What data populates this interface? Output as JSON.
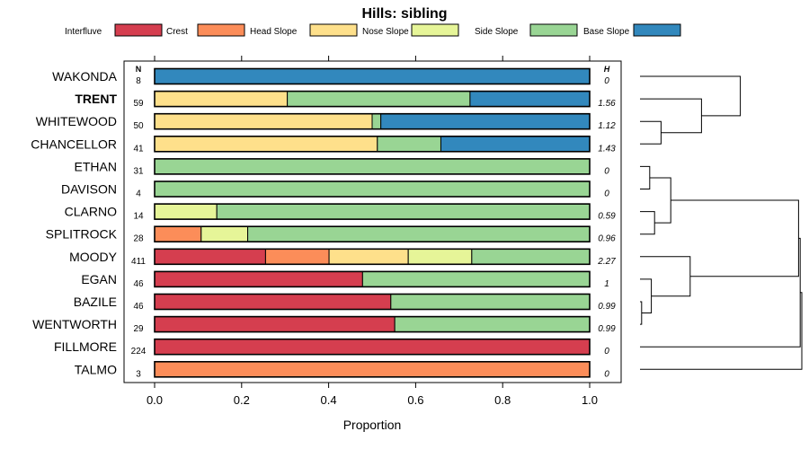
{
  "chart_data": {
    "type": "bar",
    "orientation": "horizontal",
    "stacked": true,
    "title": "Hills: sibling",
    "xlabel": "Proportion",
    "ylabel": "",
    "xlim": [
      0,
      1
    ],
    "x_ticks": [
      0,
      0.2,
      0.4,
      0.6,
      0.8,
      1
    ],
    "x_tick_labels": [
      "0.0",
      "0.2",
      "0.4",
      "0.6",
      "0.8",
      "1.0"
    ],
    "n_header": "N",
    "h_header": "H",
    "legend_position": "top",
    "series": [
      {
        "name": "Interfluve",
        "color": "#d53e4f"
      },
      {
        "name": "Crest",
        "color": "#fc8d59"
      },
      {
        "name": "Head Slope",
        "color": "#fee08b"
      },
      {
        "name": "Nose Slope",
        "color": "#e6f598"
      },
      {
        "name": "Side Slope",
        "color": "#99d594"
      },
      {
        "name": "Base Slope",
        "color": "#3288bd"
      }
    ],
    "rows": [
      {
        "name": "WAKONDA",
        "bold": false,
        "n": "8",
        "h": "0",
        "values": [
          0,
          0,
          0,
          0,
          0,
          1.0
        ]
      },
      {
        "name": "TRENT",
        "bold": true,
        "n": "59",
        "h": "1.56",
        "values": [
          0,
          0,
          0.305,
          0,
          0.42,
          0.275
        ]
      },
      {
        "name": "WHITEWOOD",
        "bold": false,
        "n": "50",
        "h": "1.12",
        "values": [
          0,
          0,
          0.5,
          0,
          0.02,
          0.48
        ]
      },
      {
        "name": "CHANCELLOR",
        "bold": false,
        "n": "41",
        "h": "1.43",
        "values": [
          0,
          0,
          0.512,
          0,
          0.146,
          0.342
        ]
      },
      {
        "name": "ETHAN",
        "bold": false,
        "n": "31",
        "h": "0",
        "values": [
          0,
          0,
          0,
          0,
          1.0,
          0
        ]
      },
      {
        "name": "DAVISON",
        "bold": false,
        "n": "4",
        "h": "0",
        "values": [
          0,
          0,
          0,
          0,
          1.0,
          0
        ]
      },
      {
        "name": "CLARNO",
        "bold": false,
        "n": "14",
        "h": "0.59",
        "values": [
          0,
          0,
          0,
          0.143,
          0.857,
          0
        ]
      },
      {
        "name": "SPLITROCK",
        "bold": false,
        "n": "28",
        "h": "0.96",
        "values": [
          0,
          0.107,
          0,
          0.107,
          0.786,
          0
        ]
      },
      {
        "name": "MOODY",
        "bold": false,
        "n": "411",
        "h": "2.27",
        "values": [
          0.255,
          0.146,
          0.182,
          0.146,
          0.271,
          0
        ]
      },
      {
        "name": "EGAN",
        "bold": false,
        "n": "46",
        "h": "1",
        "values": [
          0.478,
          0,
          0,
          0,
          0.522,
          0
        ]
      },
      {
        "name": "BAZILE",
        "bold": false,
        "n": "46",
        "h": "0.99",
        "values": [
          0.543,
          0,
          0,
          0,
          0.457,
          0
        ]
      },
      {
        "name": "WENTWORTH",
        "bold": false,
        "n": "29",
        "h": "0.99",
        "values": [
          0.552,
          0,
          0,
          0,
          0.448,
          0
        ]
      },
      {
        "name": "FILLMORE",
        "bold": false,
        "n": "224",
        "h": "0",
        "values": [
          1.0,
          0,
          0,
          0,
          0,
          0
        ]
      },
      {
        "name": "TALMO",
        "bold": false,
        "n": "3",
        "h": "0",
        "values": [
          0,
          1.0,
          0,
          0,
          0,
          0
        ]
      }
    ],
    "dendrogram": {
      "type": "hierarchical-clustering",
      "leaf_order": [
        "WAKONDA",
        "TRENT",
        "WHITEWOOD",
        "CHANCELLOR",
        "ETHAN",
        "DAVISON",
        "CLARNO",
        "SPLITROCK",
        "MOODY",
        "EGAN",
        "BAZILE",
        "WENTWORTH",
        "FILLMORE",
        "TALMO"
      ],
      "merges": [
        {
          "a": 4,
          "b": 5,
          "height": 0.06
        },
        {
          "a": 10,
          "b": 11,
          "height": 0.01
        },
        {
          "a": 6,
          "b": 7,
          "height": 0.09
        },
        {
          "a": 9,
          "b": -2,
          "height": 0.07
        },
        {
          "a": 2,
          "b": 3,
          "height": 0.13
        },
        {
          "a": -1,
          "b": -3,
          "height": 0.19
        },
        {
          "a": 1,
          "b": -5,
          "height": 0.38
        },
        {
          "a": 8,
          "b": -4,
          "height": 0.31
        },
        {
          "a": 0,
          "b": -7,
          "height": 0.62
        },
        {
          "a": -6,
          "b": -8,
          "height": 0.98
        },
        {
          "a": 12,
          "b": -10,
          "height": 0.99
        },
        {
          "a": 13,
          "b": -11,
          "height": 1.0
        }
      ]
    }
  }
}
